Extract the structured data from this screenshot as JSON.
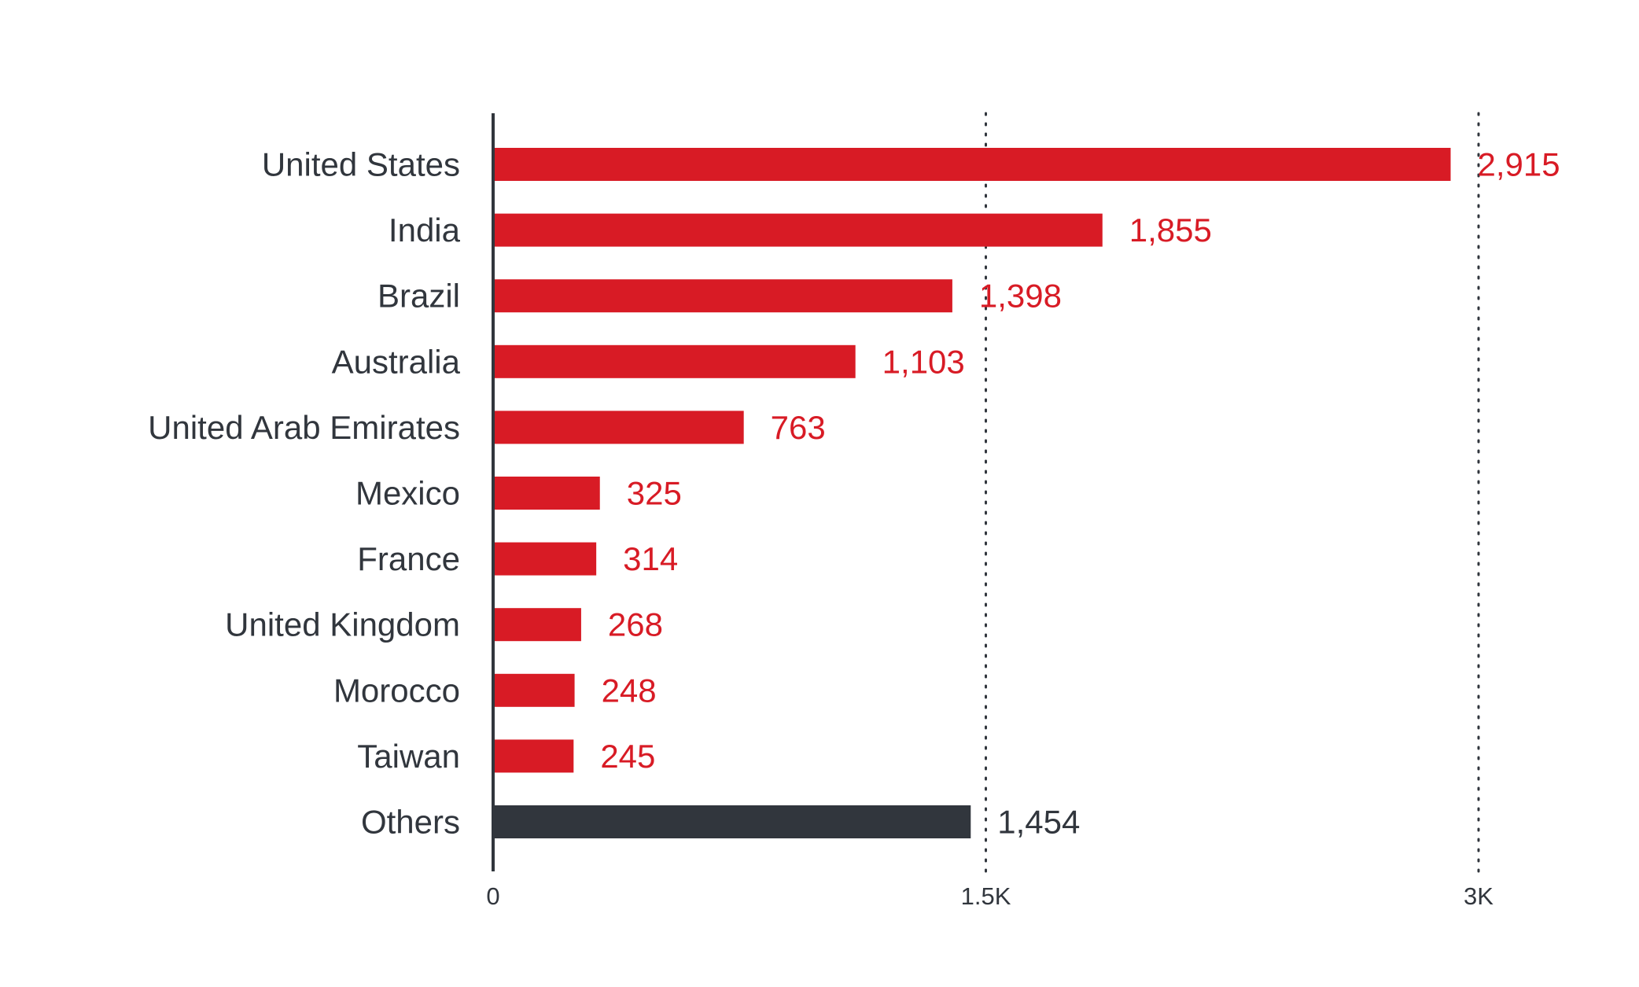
{
  "colors": {
    "primary": "#D81B25",
    "others": "#31363D",
    "axis": "#31363D",
    "label_text": "#31363D",
    "grid": "#31363D",
    "background": "#FFFFFF"
  },
  "chart_data": {
    "type": "bar",
    "orientation": "horizontal",
    "title": "",
    "xlabel": "",
    "ylabel": "",
    "categories": [
      "United States",
      "India",
      "Brazil",
      "Australia",
      "United Arab Emirates",
      "Mexico",
      "France",
      "United Kingdom",
      "Morocco",
      "Taiwan",
      "Others"
    ],
    "values": [
      2915,
      1855,
      1398,
      1103,
      763,
      325,
      314,
      268,
      248,
      245,
      1454
    ],
    "value_labels": [
      "2,915",
      "1,855",
      "1,398",
      "1,103",
      "763",
      "325",
      "314",
      "268",
      "248",
      "245",
      "1,454"
    ],
    "highlight_last_as_others": true,
    "xlim": [
      0,
      3000
    ],
    "xticks": [
      0,
      1500,
      3000
    ],
    "xtick_labels": [
      "0",
      "1.5K",
      "3K"
    ],
    "grid": "vertical dotted at 1.5K and 3K",
    "legend": "none"
  }
}
